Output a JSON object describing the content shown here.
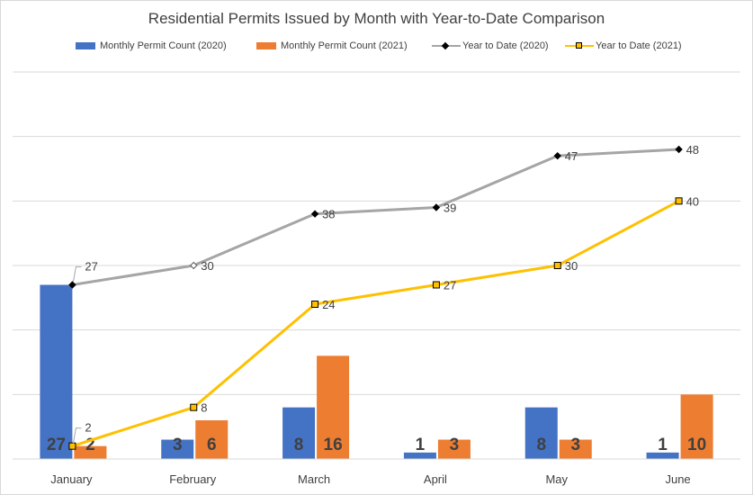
{
  "chart_data": {
    "type": "bar",
    "title": "Residential Permits Issued by Month with Year-to-Date Comparison",
    "categories": [
      "January",
      "February",
      "March",
      "April",
      "May",
      "June"
    ],
    "series": [
      {
        "name": "Monthly Permit Count (2020)",
        "kind": "bar",
        "color": "#4472c4",
        "values": [
          27,
          3,
          8,
          1,
          8,
          1
        ]
      },
      {
        "name": "Monthly Permit Count (2021)",
        "kind": "bar",
        "color": "#ed7d31",
        "values": [
          2,
          6,
          16,
          3,
          3,
          10
        ]
      },
      {
        "name": "Year to Date (2020)",
        "kind": "line",
        "color": "#a5a5a5",
        "marker": "diamond",
        "values": [
          27,
          30,
          38,
          39,
          47,
          48
        ]
      },
      {
        "name": "Year to Date (2021)",
        "kind": "line",
        "color": "#ffc000",
        "marker": "square",
        "values": [
          2,
          8,
          24,
          27,
          30,
          40
        ]
      }
    ],
    "ylim": [
      0,
      60
    ],
    "grid": true,
    "legend": "top"
  }
}
